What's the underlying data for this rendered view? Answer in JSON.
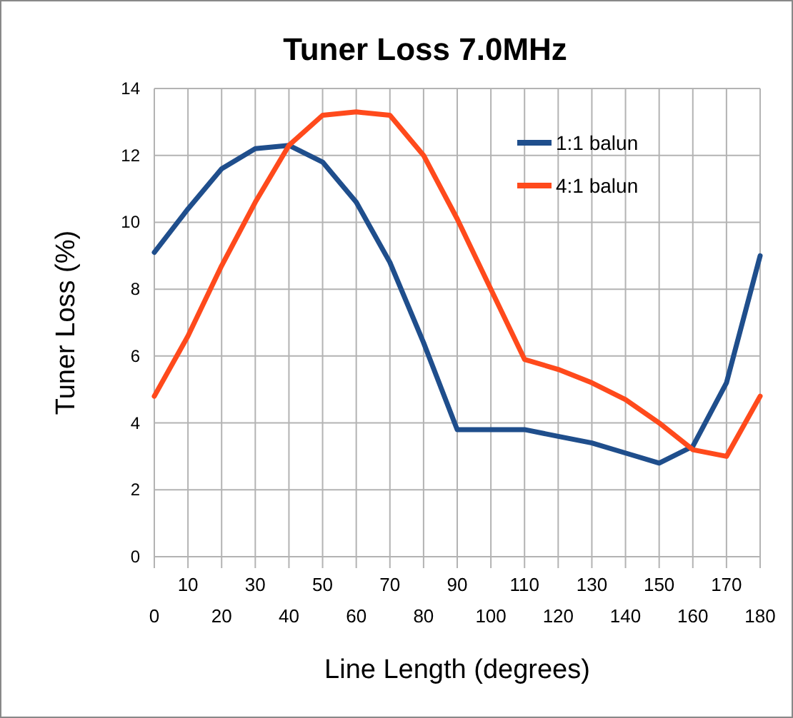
{
  "chart_data": {
    "type": "line",
    "title": "Tuner Loss 7.0MHz",
    "xlabel": "Line Length (degrees)",
    "ylabel": "Tuner Loss (%)",
    "x": [
      0,
      10,
      20,
      30,
      40,
      50,
      60,
      70,
      80,
      90,
      100,
      110,
      120,
      130,
      140,
      150,
      160,
      170,
      180
    ],
    "series": [
      {
        "name": "1:1 balun",
        "color": "#1f4e8c",
        "values": [
          9.1,
          10.4,
          11.6,
          12.2,
          12.3,
          11.8,
          10.6,
          8.8,
          6.4,
          3.8,
          3.8,
          3.8,
          3.6,
          3.4,
          3.1,
          2.8,
          3.3,
          5.2,
          9.0
        ]
      },
      {
        "name": "4:1 balun",
        "color": "#ff4a1c",
        "values": [
          4.8,
          6.6,
          8.7,
          10.6,
          12.3,
          13.2,
          13.3,
          13.2,
          12.0,
          10.1,
          8.0,
          5.9,
          5.6,
          5.2,
          4.7,
          4.0,
          3.2,
          3.0,
          4.8
        ]
      }
    ],
    "xlim": [
      0,
      180
    ],
    "xticks": [
      0,
      20,
      40,
      60,
      80,
      100,
      120,
      140,
      160,
      180
    ],
    "x2lim": [
      0,
      180
    ],
    "x2ticks": [
      10,
      30,
      50,
      70,
      90,
      110,
      130,
      150,
      170
    ],
    "ylim": [
      0,
      14
    ],
    "yticks": [
      0,
      2,
      4,
      6,
      8,
      10,
      12,
      14
    ],
    "grid": true,
    "legend": "top right",
    "marker": "none",
    "line_style": "solid"
  }
}
